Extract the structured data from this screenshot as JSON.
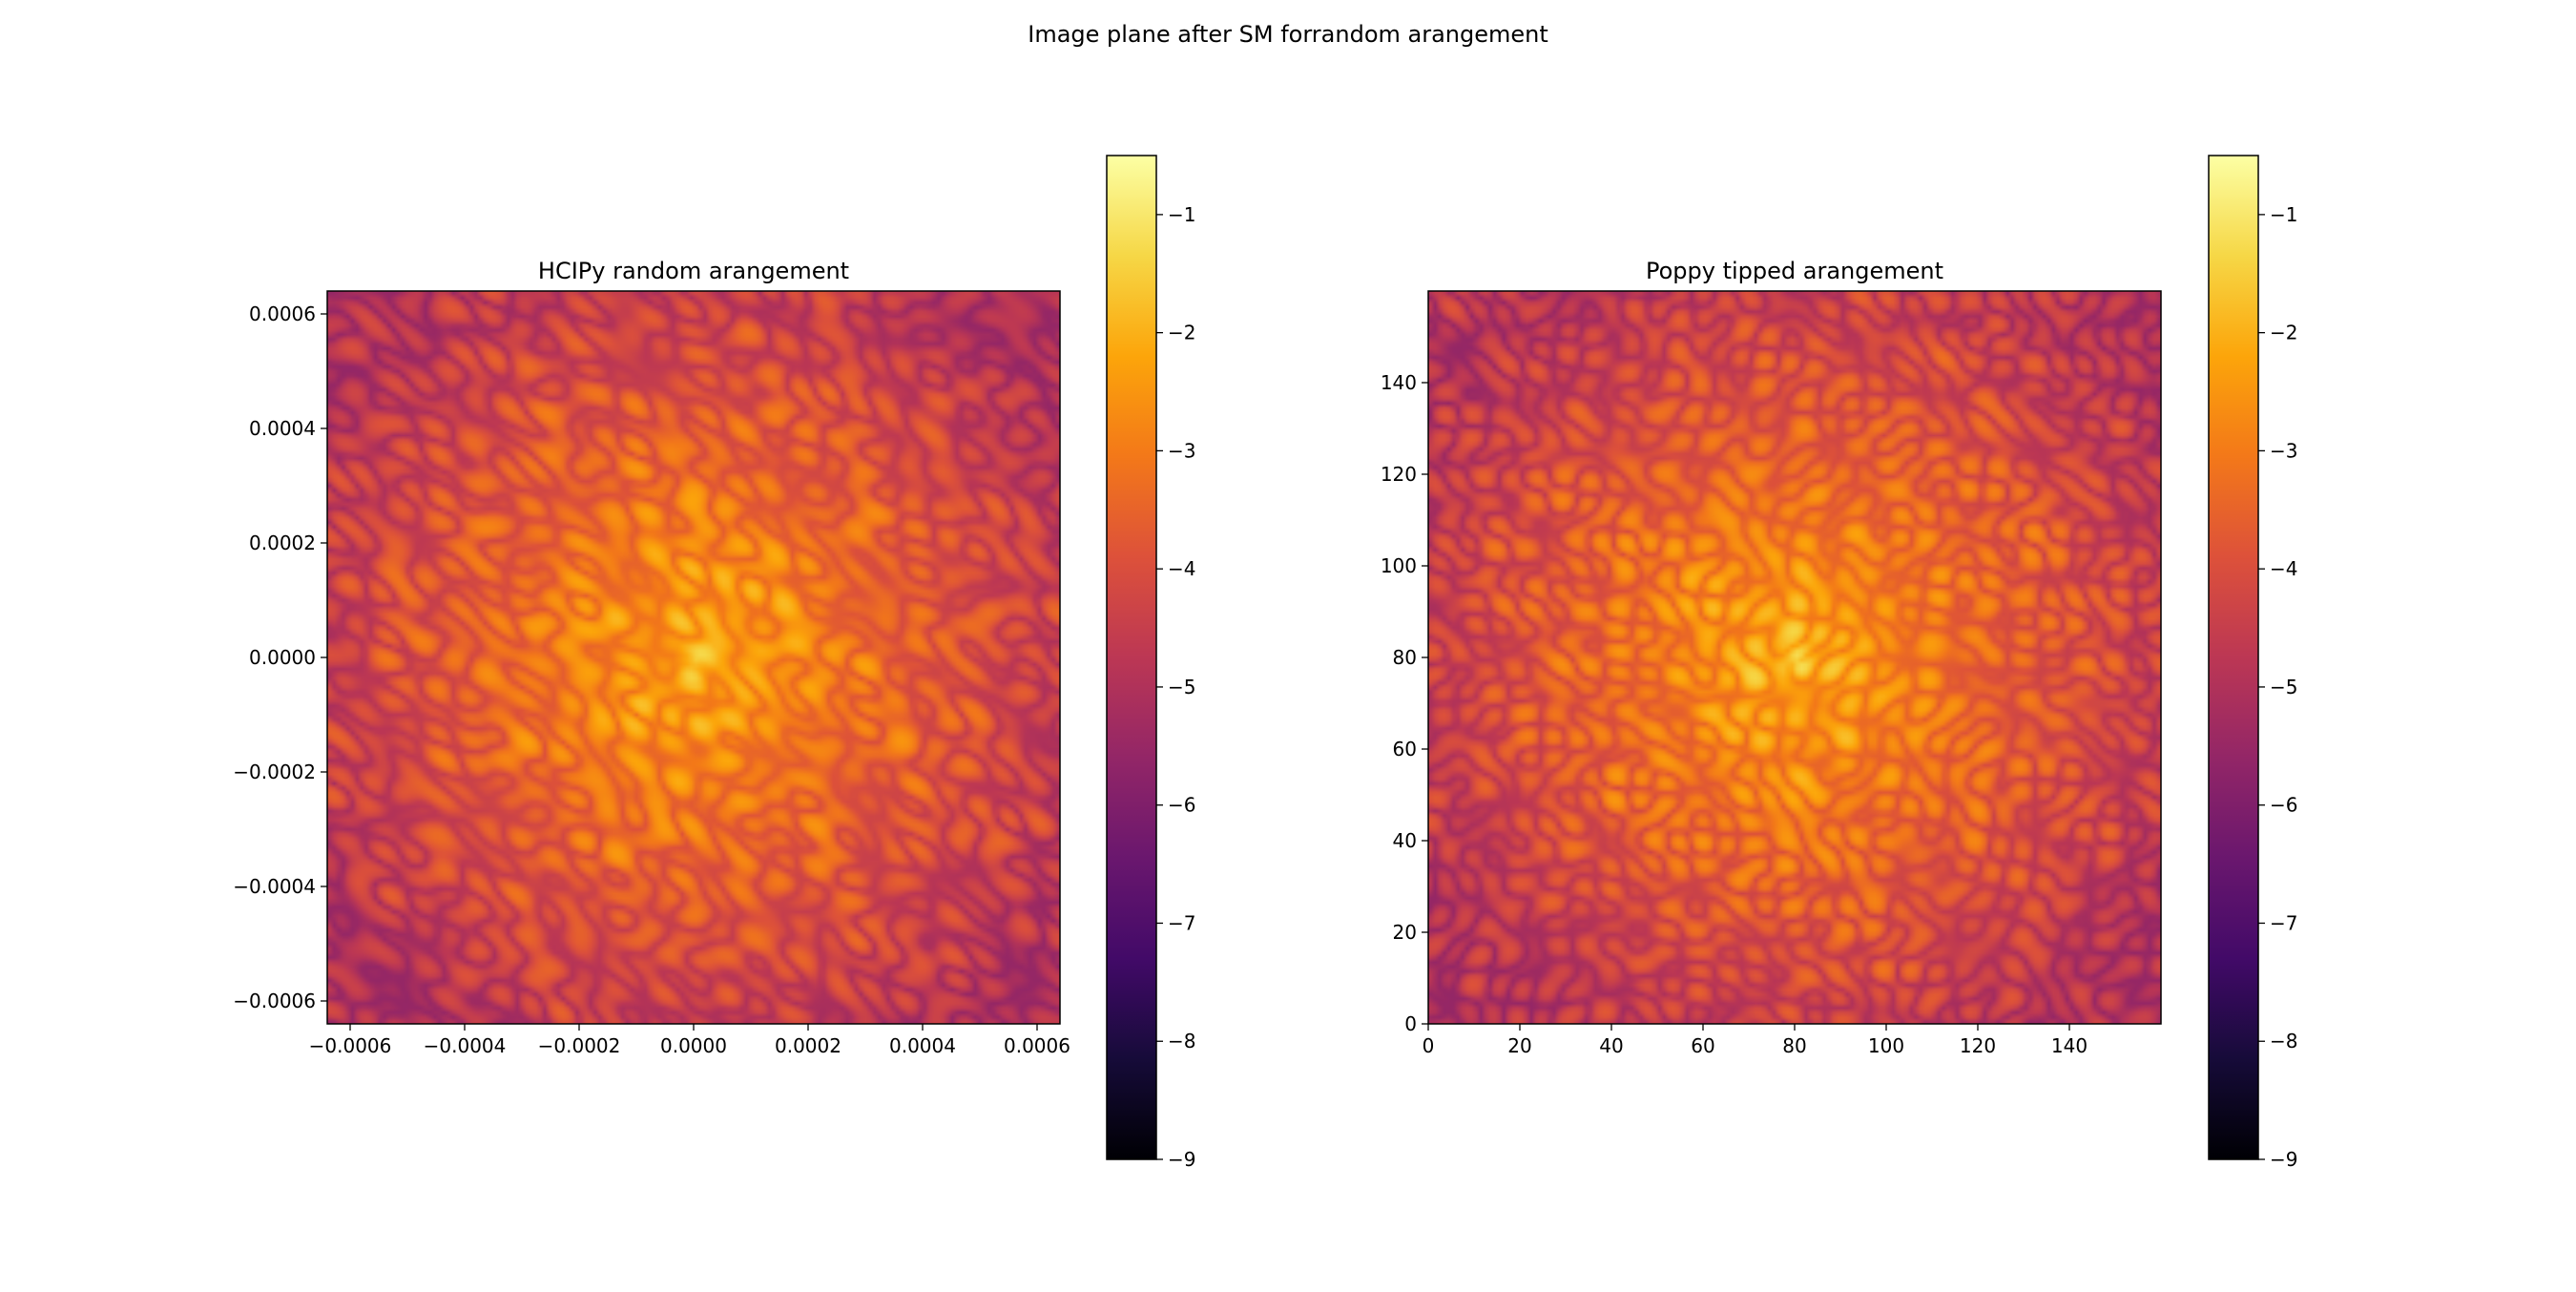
{
  "figure": {
    "suptitle": "Image plane after SM forrandom arangement"
  },
  "colors": {
    "colormap": "inferno",
    "axes_frame": "#000000",
    "background": "#ffffff"
  },
  "chart_data": [
    {
      "type": "heatmap",
      "title": "HCIPy random arangement",
      "xlabel": "",
      "ylabel": "",
      "xlim": [
        -0.00064,
        0.00064
      ],
      "ylim": [
        -0.00064,
        0.00064
      ],
      "xticks": [
        -0.0006,
        -0.0004,
        -0.0002,
        0.0,
        0.0002,
        0.0004,
        0.0006
      ],
      "xtick_labels": [
        "−0.0006",
        "−0.0004",
        "−0.0002",
        "0.0000",
        "0.0002",
        "0.0004",
        "0.0006"
      ],
      "yticks": [
        0.0006,
        0.0004,
        0.0002,
        0.0,
        -0.0002,
        -0.0004,
        -0.0006
      ],
      "ytick_labels": [
        "0.0006",
        "0.0004",
        "0.0002",
        "0.0000",
        "−0.0002",
        "−0.0004",
        "−0.0006"
      ],
      "peak": [
        0.0,
        0.0
      ],
      "grid": false,
      "colorbar": {
        "range": [
          -9,
          -0.5
        ],
        "ticks": [
          -1,
          -2,
          -3,
          -4,
          -5,
          -6,
          -7,
          -8,
          -9
        ],
        "tick_labels": [
          "−1",
          "−2",
          "−3",
          "−4",
          "−5",
          "−6",
          "−7",
          "−8",
          "−9"
        ]
      }
    },
    {
      "type": "heatmap",
      "title": "Poppy tipped arangement",
      "xlabel": "",
      "ylabel": "",
      "xlim": [
        0,
        160
      ],
      "ylim": [
        0,
        160
      ],
      "xticks": [
        0,
        20,
        40,
        60,
        80,
        100,
        120,
        140
      ],
      "xtick_labels": [
        "0",
        "20",
        "40",
        "60",
        "80",
        "100",
        "120",
        "140"
      ],
      "yticks": [
        140,
        120,
        100,
        80,
        60,
        40,
        20,
        0
      ],
      "ytick_labels": [
        "140",
        "120",
        "100",
        "80",
        "60",
        "40",
        "20",
        "0"
      ],
      "peak": [
        80,
        80
      ],
      "grid": false,
      "colorbar": {
        "range": [
          -9,
          -0.5
        ],
        "ticks": [
          -1,
          -2,
          -3,
          -4,
          -5,
          -6,
          -7,
          -8,
          -9
        ],
        "tick_labels": [
          "−1",
          "−2",
          "−3",
          "−4",
          "−5",
          "−6",
          "−7",
          "−8",
          "−9"
        ]
      }
    }
  ]
}
